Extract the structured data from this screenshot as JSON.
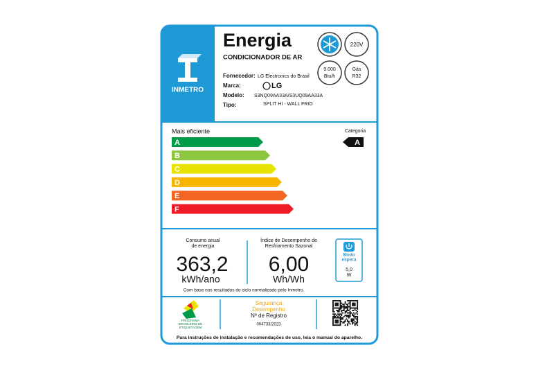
{
  "header": {
    "title": "Energia",
    "product": "CONDICIONADOR DE AR",
    "logo": "INMETRO",
    "badges": {
      "voltage": "220V",
      "capacity": [
        "9.000",
        "Btu/h"
      ],
      "gas": [
        "Gás",
        "R32"
      ]
    }
  },
  "fields": [
    {
      "label": "Fornecedor:",
      "value": "LG Electronics do Brasil"
    },
    {
      "label": "Marca:",
      "value": "LG"
    },
    {
      "label": "Modelo:",
      "value": "S3NQ09AA33A/S3UQ09AA33A"
    },
    {
      "label": "Tipo:",
      "value": "SPLIT HI - WALL FRIO"
    }
  ],
  "efficiency": {
    "top_label": "Mais eficiente",
    "category_label": "Categoria",
    "classes": [
      "A",
      "B",
      "C",
      "D",
      "E",
      "F"
    ],
    "category": "A"
  },
  "metrics": {
    "consumption": {
      "label": [
        "Consumo anual",
        "de energia"
      ],
      "value": "363,2",
      "unit": "kWh/ano"
    },
    "index": {
      "label": [
        "Índice de Desempenho de",
        "Resfriamento Sazonal"
      ],
      "value": "6,00",
      "unit": "Wh/Wh"
    },
    "standby": {
      "label": [
        "Modo",
        "espera"
      ],
      "value": "5,0",
      "unit": "W"
    },
    "note": "Com base nos resultados do ciclo normalizado pelo Inmetro."
  },
  "footer": {
    "program": [
      "PROGRAMA",
      "BRASILEIRO DE",
      "ETIQUETAGEM"
    ],
    "seal": [
      "Segurança",
      "Desempenho"
    ],
    "registry_label": "Nº de Registro",
    "registry": "004733/2023",
    "instructions": "Para instruções de instalação e recomendações de uso, leia o manual do aparelho."
  }
}
